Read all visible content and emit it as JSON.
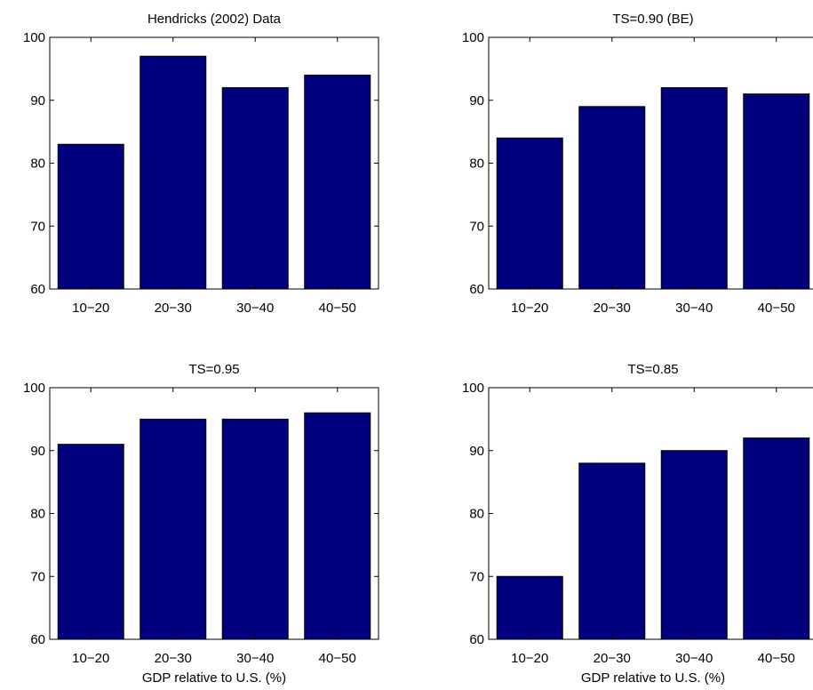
{
  "chart_data": [
    {
      "type": "bar",
      "title": "Hendricks (2002) Data",
      "categories": [
        "10−20",
        "20−30",
        "30−40",
        "40−50"
      ],
      "values": [
        83,
        97,
        92,
        94
      ],
      "xlabel": "",
      "ylabel": "",
      "ylim": [
        60,
        100
      ],
      "yticks": [
        60,
        70,
        80,
        90,
        100
      ],
      "grid": false,
      "bar_color": "#00007f"
    },
    {
      "type": "bar",
      "title": "TS=0.90 (BE)",
      "categories": [
        "10−20",
        "20−30",
        "30−40",
        "40−50"
      ],
      "values": [
        84,
        89,
        92,
        91
      ],
      "xlabel": "",
      "ylabel": "",
      "ylim": [
        60,
        100
      ],
      "yticks": [
        60,
        70,
        80,
        90,
        100
      ],
      "grid": false,
      "bar_color": "#00007f"
    },
    {
      "type": "bar",
      "title": "TS=0.95",
      "categories": [
        "10−20",
        "20−30",
        "30−40",
        "40−50"
      ],
      "values": [
        91,
        95,
        95,
        96
      ],
      "xlabel": "GDP relative to U.S. (%)",
      "ylabel": "",
      "ylim": [
        60,
        100
      ],
      "yticks": [
        60,
        70,
        80,
        90,
        100
      ],
      "grid": false,
      "bar_color": "#00007f"
    },
    {
      "type": "bar",
      "title": "TS=0.85",
      "categories": [
        "10−20",
        "20−30",
        "30−40",
        "40−50"
      ],
      "values": [
        70,
        88,
        90,
        92
      ],
      "xlabel": "GDP relative to U.S. (%)",
      "ylabel": "",
      "ylim": [
        60,
        100
      ],
      "yticks": [
        60,
        70,
        80,
        90,
        100
      ],
      "grid": false,
      "bar_color": "#00007f"
    }
  ]
}
